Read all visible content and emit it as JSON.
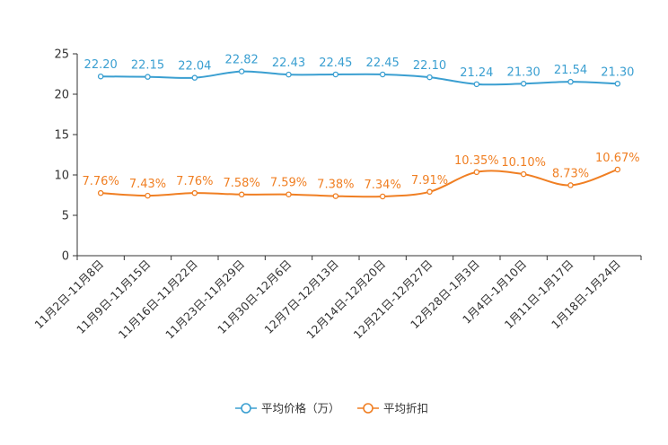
{
  "chart_data": {
    "type": "line",
    "title": "",
    "xlabel": "",
    "ylabel": "",
    "ylim": [
      0,
      25
    ],
    "yticks": [
      0,
      5,
      10,
      15,
      20,
      25
    ],
    "grid": false,
    "legend_position": "bottom-center",
    "categories": [
      "11月2日-11月8日",
      "11月9日-11月15日",
      "11月16日-11月22日",
      "11月23日-11月29日",
      "11月30日-12月6日",
      "12月7日-12月13日",
      "12月14日-12月20日",
      "12月21日-12月27日",
      "12月28日-1月3日",
      "1月4日-1月10日",
      "1月11日-1月17日",
      "1月18日-1月24日"
    ],
    "series": [
      {
        "name": "平均价格（万）",
        "color": "#3a9fd1",
        "values": [
          22.2,
          22.15,
          22.04,
          22.82,
          22.43,
          22.45,
          22.45,
          22.1,
          21.24,
          21.3,
          21.54,
          21.3
        ],
        "labels": [
          "22.20",
          "22.15",
          "22.04",
          "22.82",
          "22.43",
          "22.45",
          "22.45",
          "22.10",
          "21.24",
          "21.30",
          "21.54",
          "21.30"
        ]
      },
      {
        "name": "平均折扣",
        "color": "#f07f23",
        "values": [
          7.76,
          7.43,
          7.76,
          7.58,
          7.59,
          7.38,
          7.34,
          7.91,
          10.35,
          10.1,
          8.73,
          10.67
        ],
        "labels": [
          "7.76%",
          "7.43%",
          "7.76%",
          "7.58%",
          "7.59%",
          "7.38%",
          "7.34%",
          "7.91%",
          "10.35%",
          "10.10%",
          "8.73%",
          "10.67%"
        ]
      }
    ]
  }
}
